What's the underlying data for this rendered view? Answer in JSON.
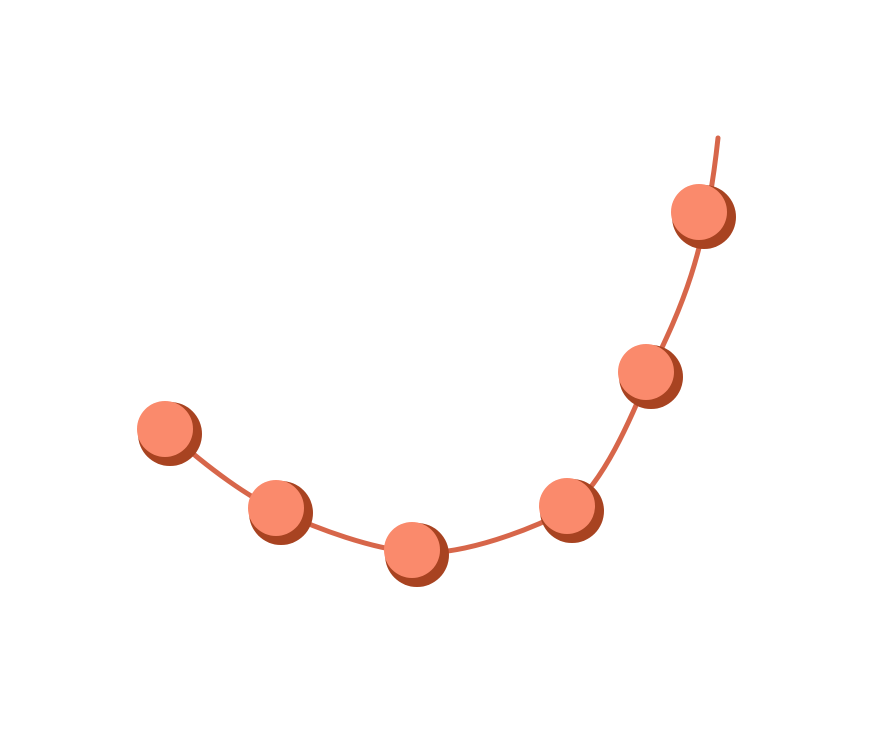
{
  "colors": {
    "background": "#ffffff",
    "curve": "#d7664a",
    "bead_face": "#fa8a6c",
    "bead_shadow": "#a84321"
  },
  "beads": [
    {
      "name": "bead-1"
    },
    {
      "name": "bead-2"
    },
    {
      "name": "bead-3"
    },
    {
      "name": "bead-4"
    },
    {
      "name": "bead-5"
    },
    {
      "name": "bead-6"
    }
  ]
}
